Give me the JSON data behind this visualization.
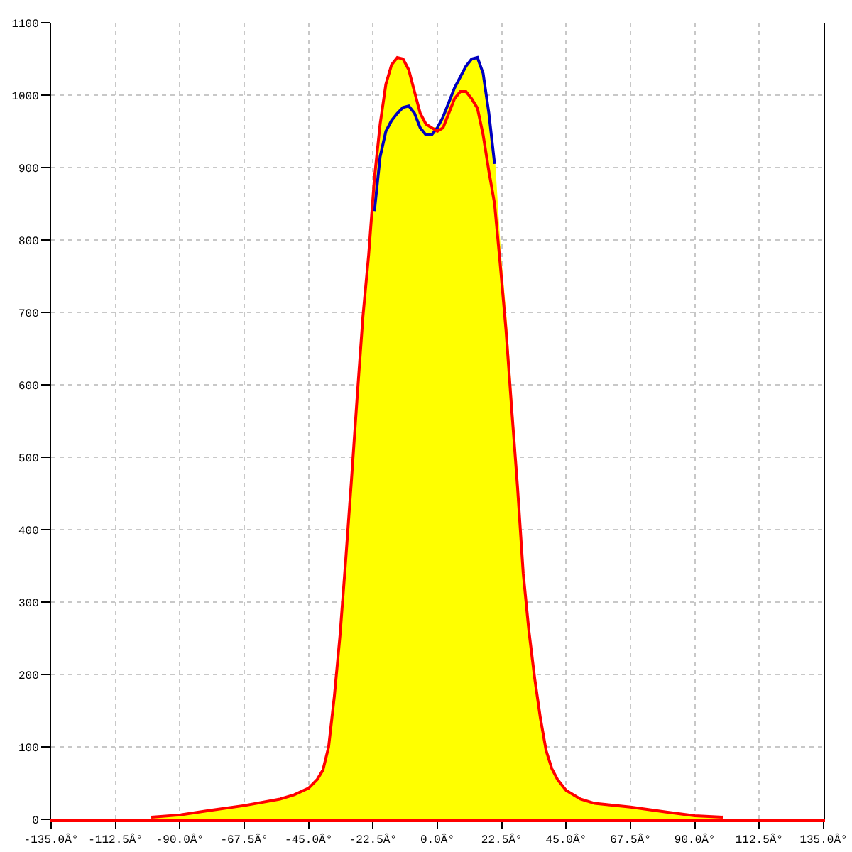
{
  "chart_data": {
    "type": "line",
    "x": [
      -100,
      -90,
      -80,
      -67.5,
      -55,
      -50,
      -45,
      -42,
      -40,
      -38,
      -36,
      -34,
      -32,
      -30,
      -28,
      -26,
      -24,
      -22,
      -20,
      -18,
      -16,
      -14,
      -12,
      -10,
      -8,
      -6,
      -4,
      -2,
      0,
      2,
      4,
      6,
      8,
      10,
      12,
      14,
      16,
      18,
      20,
      22,
      24,
      26,
      28,
      30,
      32,
      34,
      36,
      38,
      40,
      42,
      45,
      50,
      55,
      67.5,
      80,
      90,
      100
    ],
    "series": [
      {
        "type": "area",
        "color": "#ffff00",
        "values": [
          3,
          6,
          12,
          19,
          28,
          34,
          43,
          55,
          68,
          100,
          170,
          255,
          360,
          470,
          585,
          695,
          780,
          885,
          960,
          1015,
          1042,
          1052,
          1050,
          1035,
          1005,
          975,
          960,
          955,
          955,
          970,
          990,
          1010,
          1025,
          1040,
          1050,
          1052,
          1030,
          975,
          905,
          780,
          690,
          575,
          460,
          340,
          260,
          195,
          140,
          95,
          70,
          55,
          40,
          28,
          22,
          17,
          10,
          5,
          3
        ]
      },
      {
        "color": "#0000c0",
        "values": [
          null,
          null,
          null,
          null,
          null,
          null,
          null,
          null,
          null,
          null,
          null,
          null,
          null,
          null,
          null,
          null,
          null,
          840,
          915,
          950,
          965,
          975,
          983,
          985,
          975,
          955,
          945,
          945,
          955,
          970,
          990,
          1010,
          1025,
          1040,
          1050,
          1052,
          1030,
          975,
          905,
          null,
          null,
          null,
          null,
          null,
          null,
          null,
          null,
          null,
          null,
          null,
          null,
          null,
          null,
          null,
          null,
          null,
          null
        ]
      },
      {
        "color": "#ff0000",
        "values": [
          3,
          6,
          12,
          19,
          28,
          34,
          43,
          55,
          68,
          100,
          170,
          255,
          360,
          470,
          585,
          695,
          780,
          885,
          960,
          1015,
          1042,
          1052,
          1050,
          1035,
          1005,
          975,
          960,
          955,
          950,
          955,
          975,
          995,
          1005,
          1005,
          995,
          982,
          945,
          895,
          850,
          765,
          675,
          565,
          460,
          340,
          260,
          195,
          140,
          95,
          70,
          55,
          40,
          28,
          22,
          17,
          10,
          5,
          3
        ]
      }
    ],
    "xlim": [
      -135,
      135
    ],
    "xticks": [
      {
        "value": -135,
        "label": "-135.0Â°"
      },
      {
        "value": -112.5,
        "label": "-112.5Â°"
      },
      {
        "value": -90,
        "label": "-90.0Â°"
      },
      {
        "value": -67.5,
        "label": "-67.5Â°"
      },
      {
        "value": -45,
        "label": "-45.0Â°"
      },
      {
        "value": -22.5,
        "label": "-22.5Â°"
      },
      {
        "value": 0,
        "label": "0.0Â°"
      },
      {
        "value": 22.5,
        "label": "22.5Â°"
      },
      {
        "value": 45,
        "label": "45.0Â°"
      },
      {
        "value": 67.5,
        "label": "67.5Â°"
      },
      {
        "value": 90,
        "label": "90.0Â°"
      },
      {
        "value": 112.5,
        "label": "112.5Â°"
      },
      {
        "value": 135,
        "label": "135.0Â°"
      }
    ],
    "ylim": [
      0,
      1100
    ],
    "yticks": [
      0,
      100,
      200,
      300,
      400,
      500,
      600,
      700,
      800,
      900,
      1000,
      1100
    ],
    "grid": true
  }
}
